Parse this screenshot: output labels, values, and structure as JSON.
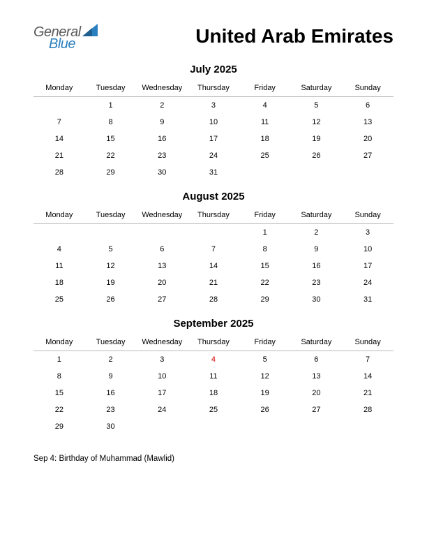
{
  "logo": {
    "text_top": "General",
    "text_bottom": "Blue",
    "color_top": "#5a5a5a",
    "color_bottom": "#2a7fbf",
    "triangle_color": "#2a7fbf"
  },
  "title": "United Arab Emirates",
  "colors": {
    "background": "#ffffff",
    "text": "#000000",
    "header_border": "#b8b8b8",
    "holiday": "#d40000"
  },
  "typography": {
    "title_fontsize": 28,
    "month_title_fontsize": 15,
    "weekday_fontsize": 11,
    "day_fontsize": 11,
    "holiday_list_fontsize": 11.5
  },
  "weekdays": [
    "Monday",
    "Tuesday",
    "Wednesday",
    "Thursday",
    "Friday",
    "Saturday",
    "Sunday"
  ],
  "months": [
    {
      "title": "July 2025",
      "weeks": [
        [
          "",
          "1",
          "2",
          "3",
          "4",
          "5",
          "6"
        ],
        [
          "7",
          "8",
          "9",
          "10",
          "11",
          "12",
          "13"
        ],
        [
          "14",
          "15",
          "16",
          "17",
          "18",
          "19",
          "20"
        ],
        [
          "21",
          "22",
          "23",
          "24",
          "25",
          "26",
          "27"
        ],
        [
          "28",
          "29",
          "30",
          "31",
          "",
          "",
          ""
        ]
      ],
      "holidays": []
    },
    {
      "title": "August 2025",
      "weeks": [
        [
          "",
          "",
          "",
          "",
          "1",
          "2",
          "3"
        ],
        [
          "4",
          "5",
          "6",
          "7",
          "8",
          "9",
          "10"
        ],
        [
          "11",
          "12",
          "13",
          "14",
          "15",
          "16",
          "17"
        ],
        [
          "18",
          "19",
          "20",
          "21",
          "22",
          "23",
          "24"
        ],
        [
          "25",
          "26",
          "27",
          "28",
          "29",
          "30",
          "31"
        ]
      ],
      "holidays": []
    },
    {
      "title": "September 2025",
      "weeks": [
        [
          "1",
          "2",
          "3",
          "4",
          "5",
          "6",
          "7"
        ],
        [
          "8",
          "9",
          "10",
          "11",
          "12",
          "13",
          "14"
        ],
        [
          "15",
          "16",
          "17",
          "18",
          "19",
          "20",
          "21"
        ],
        [
          "22",
          "23",
          "24",
          "25",
          "26",
          "27",
          "28"
        ],
        [
          "29",
          "30",
          "",
          "",
          "",
          "",
          ""
        ]
      ],
      "holidays": [
        "4"
      ]
    }
  ],
  "holidays_list": [
    "Sep 4: Birthday of Muhammad (Mawlid)"
  ]
}
